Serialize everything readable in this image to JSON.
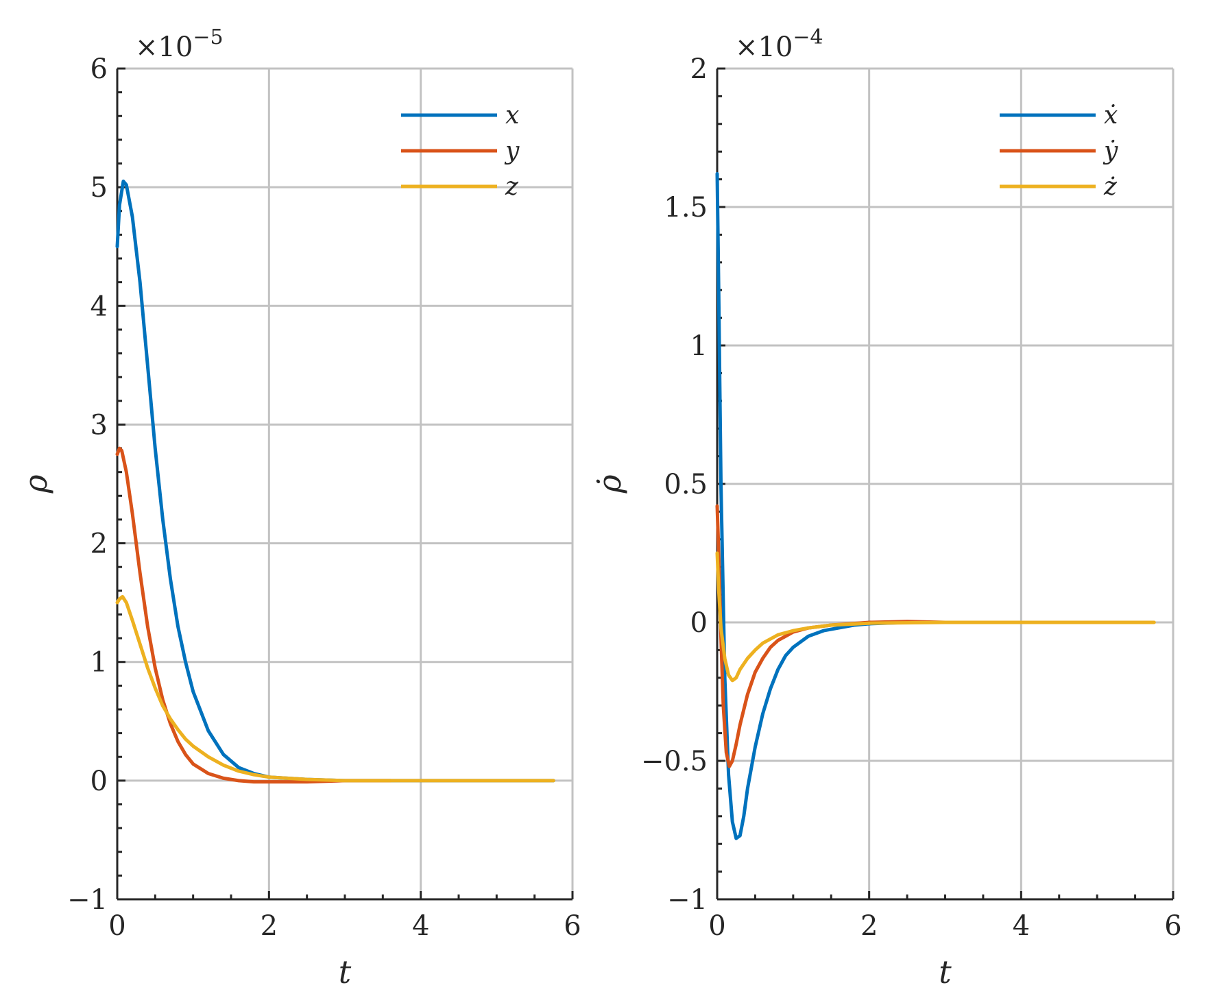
{
  "chart_data": [
    {
      "type": "line",
      "xlabel": "t",
      "ylabel": "ρ",
      "y_exponent_label": "×10",
      "y_exponent_power": "−5",
      "xlim": [
        0,
        6
      ],
      "ylim": [
        -1,
        6
      ],
      "xticks": [
        0,
        2,
        4,
        6
      ],
      "xtick_labels": [
        "0",
        "2",
        "4",
        "6"
      ],
      "yticks": [
        -1,
        0,
        1,
        2,
        3,
        4,
        5,
        6
      ],
      "ytick_labels": [
        "−1",
        "0",
        "1",
        "2",
        "3",
        "4",
        "5",
        "6"
      ],
      "grid": true,
      "legend_position": "top-right",
      "series": [
        {
          "name": "x",
          "color": "#0072BD",
          "points": [
            [
              0,
              4.5
            ],
            [
              0.03,
              4.85
            ],
            [
              0.08,
              5.05
            ],
            [
              0.12,
              5.02
            ],
            [
              0.2,
              4.75
            ],
            [
              0.3,
              4.2
            ],
            [
              0.4,
              3.5
            ],
            [
              0.5,
              2.8
            ],
            [
              0.6,
              2.2
            ],
            [
              0.7,
              1.7
            ],
            [
              0.8,
              1.3
            ],
            [
              0.9,
              1.0
            ],
            [
              1.0,
              0.75
            ],
            [
              1.2,
              0.42
            ],
            [
              1.4,
              0.22
            ],
            [
              1.6,
              0.11
            ],
            [
              1.8,
              0.06
            ],
            [
              2.0,
              0.03
            ],
            [
              2.5,
              0.01
            ],
            [
              3.0,
              0.0
            ],
            [
              4.0,
              0.0
            ],
            [
              5.0,
              0.0
            ],
            [
              5.75,
              0.0
            ]
          ]
        },
        {
          "name": "y",
          "color": "#D95319",
          "points": [
            [
              0,
              2.75
            ],
            [
              0.03,
              2.8
            ],
            [
              0.06,
              2.78
            ],
            [
              0.12,
              2.6
            ],
            [
              0.2,
              2.25
            ],
            [
              0.3,
              1.75
            ],
            [
              0.4,
              1.3
            ],
            [
              0.5,
              0.95
            ],
            [
              0.6,
              0.68
            ],
            [
              0.7,
              0.48
            ],
            [
              0.8,
              0.33
            ],
            [
              0.9,
              0.22
            ],
            [
              1.0,
              0.14
            ],
            [
              1.2,
              0.06
            ],
            [
              1.4,
              0.02
            ],
            [
              1.6,
              0.0
            ],
            [
              1.8,
              -0.01
            ],
            [
              2.0,
              -0.01
            ],
            [
              2.5,
              -0.01
            ],
            [
              3.0,
              0.0
            ],
            [
              3.6,
              0.0
            ]
          ]
        },
        {
          "name": "z",
          "color": "#EDB120",
          "points": [
            [
              0,
              1.5
            ],
            [
              0.03,
              1.53
            ],
            [
              0.07,
              1.55
            ],
            [
              0.12,
              1.5
            ],
            [
              0.2,
              1.35
            ],
            [
              0.3,
              1.15
            ],
            [
              0.4,
              0.95
            ],
            [
              0.5,
              0.78
            ],
            [
              0.6,
              0.63
            ],
            [
              0.7,
              0.52
            ],
            [
              0.8,
              0.43
            ],
            [
              0.9,
              0.35
            ],
            [
              1.0,
              0.29
            ],
            [
              1.2,
              0.2
            ],
            [
              1.4,
              0.13
            ],
            [
              1.6,
              0.08
            ],
            [
              1.8,
              0.05
            ],
            [
              2.0,
              0.03
            ],
            [
              2.5,
              0.01
            ],
            [
              3.0,
              0.0
            ],
            [
              4.0,
              0.0
            ],
            [
              5.0,
              0.0
            ],
            [
              5.75,
              0.0
            ]
          ]
        }
      ]
    },
    {
      "type": "line",
      "xlabel": "t",
      "ylabel": "ρ̇",
      "y_exponent_label": "×10",
      "y_exponent_power": "−4",
      "xlim": [
        0,
        6
      ],
      "ylim": [
        -1,
        2
      ],
      "xticks": [
        0,
        2,
        4,
        6
      ],
      "xtick_labels": [
        "0",
        "2",
        "4",
        "6"
      ],
      "yticks": [
        -1,
        -0.5,
        0,
        0.5,
        1,
        1.5,
        2
      ],
      "ytick_labels": [
        "−1",
        "−0.5",
        "0",
        "0.5",
        "1",
        "1.5",
        "2"
      ],
      "grid": true,
      "legend_position": "top-right",
      "series": [
        {
          "name": "ẋ",
          "color": "#0072BD",
          "points": [
            [
              0,
              1.62
            ],
            [
              0.02,
              1.2
            ],
            [
              0.05,
              0.5
            ],
            [
              0.1,
              -0.2
            ],
            [
              0.15,
              -0.55
            ],
            [
              0.2,
              -0.72
            ],
            [
              0.25,
              -0.78
            ],
            [
              0.3,
              -0.77
            ],
            [
              0.35,
              -0.7
            ],
            [
              0.4,
              -0.6
            ],
            [
              0.5,
              -0.45
            ],
            [
              0.6,
              -0.33
            ],
            [
              0.7,
              -0.24
            ],
            [
              0.8,
              -0.17
            ],
            [
              0.9,
              -0.12
            ],
            [
              1.0,
              -0.09
            ],
            [
              1.2,
              -0.05
            ],
            [
              1.4,
              -0.03
            ],
            [
              1.6,
              -0.02
            ],
            [
              1.8,
              -0.01
            ],
            [
              2.0,
              -0.005
            ],
            [
              2.5,
              0.0
            ],
            [
              3.0,
              0.0
            ],
            [
              3.7,
              0.0
            ]
          ]
        },
        {
          "name": "ẏ",
          "color": "#D95319",
          "points": [
            [
              0,
              0.42
            ],
            [
              0.02,
              0.25
            ],
            [
              0.05,
              -0.05
            ],
            [
              0.08,
              -0.3
            ],
            [
              0.12,
              -0.47
            ],
            [
              0.16,
              -0.52
            ],
            [
              0.2,
              -0.5
            ],
            [
              0.25,
              -0.44
            ],
            [
              0.3,
              -0.37
            ],
            [
              0.4,
              -0.26
            ],
            [
              0.5,
              -0.18
            ],
            [
              0.6,
              -0.13
            ],
            [
              0.7,
              -0.09
            ],
            [
              0.8,
              -0.065
            ],
            [
              1.0,
              -0.035
            ],
            [
              1.2,
              -0.02
            ],
            [
              1.5,
              -0.01
            ],
            [
              2.0,
              0.0
            ],
            [
              2.5,
              0.003
            ],
            [
              3.0,
              0.0
            ],
            [
              3.7,
              0.0
            ]
          ]
        },
        {
          "name": "ż",
          "color": "#EDB120",
          "points": [
            [
              0,
              0.25
            ],
            [
              0.02,
              0.12
            ],
            [
              0.05,
              -0.02
            ],
            [
              0.1,
              -0.13
            ],
            [
              0.15,
              -0.19
            ],
            [
              0.2,
              -0.21
            ],
            [
              0.25,
              -0.2
            ],
            [
              0.3,
              -0.17
            ],
            [
              0.4,
              -0.13
            ],
            [
              0.5,
              -0.1
            ],
            [
              0.6,
              -0.075
            ],
            [
              0.8,
              -0.045
            ],
            [
              1.0,
              -0.03
            ],
            [
              1.2,
              -0.02
            ],
            [
              1.5,
              -0.01
            ],
            [
              2.0,
              -0.003
            ],
            [
              3.0,
              0.0
            ],
            [
              4.0,
              0.0
            ],
            [
              5.0,
              0.0
            ],
            [
              5.75,
              0.0
            ]
          ]
        }
      ]
    }
  ]
}
